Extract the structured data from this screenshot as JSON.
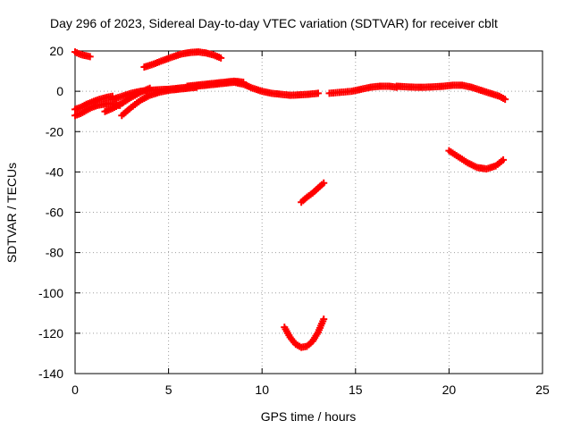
{
  "chart_data": {
    "type": "scatter",
    "title": "Day 296 of 2023, Sidereal Day-to-day VTEC variation (SDTVAR) for receiver cblt",
    "xlabel": "GPS time / hours",
    "ylabel": "SDTVAR / TECUs",
    "xlim": [
      0,
      25
    ],
    "ylim": [
      -140,
      20
    ],
    "xticks": [
      0,
      5,
      10,
      15,
      20,
      25
    ],
    "yticks": [
      20,
      0,
      -20,
      -40,
      -60,
      -80,
      -100,
      -120,
      -140
    ],
    "grid": true,
    "legend": "none",
    "marker": "plus",
    "color": "#ff0000",
    "series": [
      {
        "x": [
          0.0,
          0.2,
          0.4,
          0.6,
          0.8
        ],
        "y": [
          19.5,
          18.6,
          18.0,
          17.6,
          17.2
        ]
      },
      {
        "x": [
          3.7,
          4.2,
          4.7,
          5.2,
          5.7,
          6.2,
          6.6,
          7.0,
          7.4,
          7.8
        ],
        "y": [
          12.0,
          13.5,
          15.3,
          17.0,
          18.5,
          19.3,
          19.5,
          19.0,
          18.0,
          16.5
        ]
      },
      {
        "x": [
          0.0,
          0.3,
          0.6,
          1.0,
          1.3,
          1.7,
          2.0
        ],
        "y": [
          -9.0,
          -8.0,
          -6.5,
          -5.0,
          -4.0,
          -3.0,
          -2.5
        ]
      },
      {
        "x": [
          0.0,
          0.3,
          0.6,
          0.9,
          1.2,
          1.5,
          1.8,
          2.1,
          2.4
        ],
        "y": [
          -12.0,
          -11.0,
          -9.5,
          -8.0,
          -7.0,
          -6.5,
          -6.0,
          -6.5,
          -7.0
        ]
      },
      {
        "x": [
          1.6,
          2.0,
          2.5,
          3.0,
          3.5,
          4.0
        ],
        "y": [
          -10.0,
          -8.5,
          -6.0,
          -3.0,
          -0.5,
          1.5
        ]
      },
      {
        "x": [
          2.5,
          3.0,
          3.5,
          4.0,
          4.5,
          5.0,
          5.5,
          6.0,
          6.5
        ],
        "y": [
          -12.0,
          -8.0,
          -4.5,
          -2.0,
          -0.5,
          0.5,
          1.0,
          1.5,
          2.0
        ]
      },
      {
        "x": [
          2.0,
          2.5,
          3.0,
          3.5,
          4.0,
          4.5,
          5.0,
          5.5,
          6.0,
          6.5,
          7.0,
          7.5,
          8.0,
          8.5,
          9.0,
          9.5,
          10.0,
          10.5,
          11.0,
          11.5,
          12.0,
          12.5,
          13.0
        ],
        "y": [
          -4.0,
          -2.5,
          -1.0,
          0.0,
          0.5,
          0.8,
          1.0,
          1.5,
          2.0,
          2.5,
          3.0,
          3.5,
          4.0,
          4.5,
          3.5,
          1.5,
          0.0,
          -1.0,
          -1.5,
          -2.0,
          -1.8,
          -1.5,
          -1.0
        ]
      },
      {
        "x": [
          6.0,
          6.5,
          7.0,
          7.5,
          8.0,
          8.5,
          9.0
        ],
        "y": [
          2.5,
          3.0,
          3.5,
          4.0,
          4.5,
          5.0,
          4.5
        ]
      },
      {
        "x": [
          13.6,
          14.8,
          15.3,
          15.8,
          16.3,
          16.8,
          17.2
        ],
        "y": [
          -1.0,
          0.0,
          1.0,
          2.0,
          2.5,
          2.5,
          2.0
        ]
      },
      {
        "x": [
          17.2,
          17.7,
          18.2,
          18.7,
          19.2,
          19.7,
          20.2,
          20.7,
          21.2,
          21.7,
          22.2,
          22.7,
          23.0
        ],
        "y": [
          2.5,
          2.2,
          2.0,
          2.0,
          2.2,
          2.5,
          3.0,
          3.0,
          2.0,
          0.5,
          -1.0,
          -2.5,
          -4.0
        ]
      },
      {
        "x": [
          12.1,
          12.4,
          12.7,
          13.0,
          13.3
        ],
        "y": [
          -55.0,
          -52.5,
          -50.5,
          -48.0,
          -45.5
        ]
      },
      {
        "x": [
          11.2,
          11.5,
          11.8,
          12.1,
          12.4,
          12.7,
          13.0,
          13.3
        ],
        "y": [
          -117.0,
          -122.0,
          -125.5,
          -127.0,
          -126.5,
          -124.0,
          -119.5,
          -113.0
        ]
      },
      {
        "x": [
          20.0,
          20.5,
          21.0,
          21.5,
          22.0,
          22.5,
          22.9
        ],
        "y": [
          -29.5,
          -32.5,
          -35.5,
          -37.8,
          -38.5,
          -37.0,
          -34.0
        ]
      }
    ]
  }
}
